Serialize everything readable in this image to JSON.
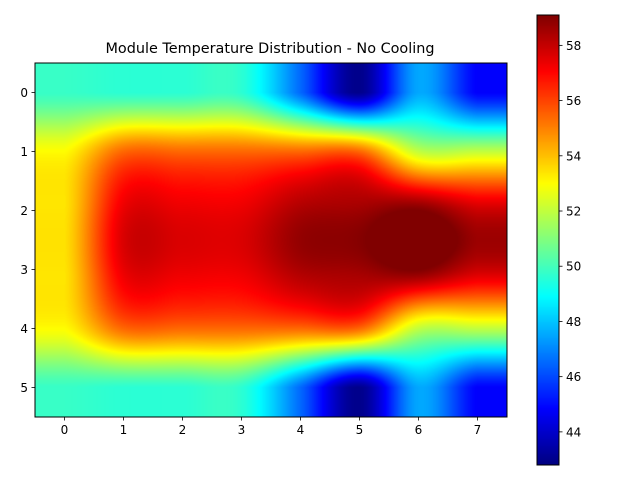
{
  "chart_data": {
    "type": "heatmap",
    "title": "Module Temperature Distribution - No Cooling",
    "xlabel": "",
    "ylabel": "",
    "x_ticks": [
      "0",
      "1",
      "2",
      "3",
      "4",
      "5",
      "6",
      "7"
    ],
    "y_ticks": [
      "0",
      "1",
      "2",
      "3",
      "4",
      "5"
    ],
    "xlim": [
      -0.5,
      7.5
    ],
    "ylim": [
      5.5,
      -0.5
    ],
    "colormap": "jet",
    "interpolation": "bicubic",
    "grid": false,
    "colorbar": {
      "placement": "right",
      "vmin": 42.8,
      "vmax": 59.1,
      "ticks": [
        "44",
        "46",
        "48",
        "50",
        "52",
        "54",
        "56",
        "58"
      ]
    },
    "values": [
      [
        49.8,
        49.6,
        49.6,
        49.6,
        46.5,
        43.0,
        47.5,
        44.8
      ],
      [
        53.0,
        55.4,
        55.4,
        55.4,
        55.4,
        55.4,
        52.0,
        52.0
      ],
      [
        53.4,
        57.4,
        57.4,
        57.4,
        58.4,
        58.6,
        59.1,
        57.9
      ],
      [
        53.4,
        57.4,
        57.4,
        57.4,
        58.4,
        58.6,
        59.1,
        57.9
      ],
      [
        53.0,
        55.4,
        55.4,
        55.4,
        55.4,
        55.4,
        52.0,
        52.0
      ],
      [
        49.8,
        49.6,
        49.6,
        49.6,
        46.5,
        43.0,
        47.5,
        44.8
      ]
    ]
  }
}
